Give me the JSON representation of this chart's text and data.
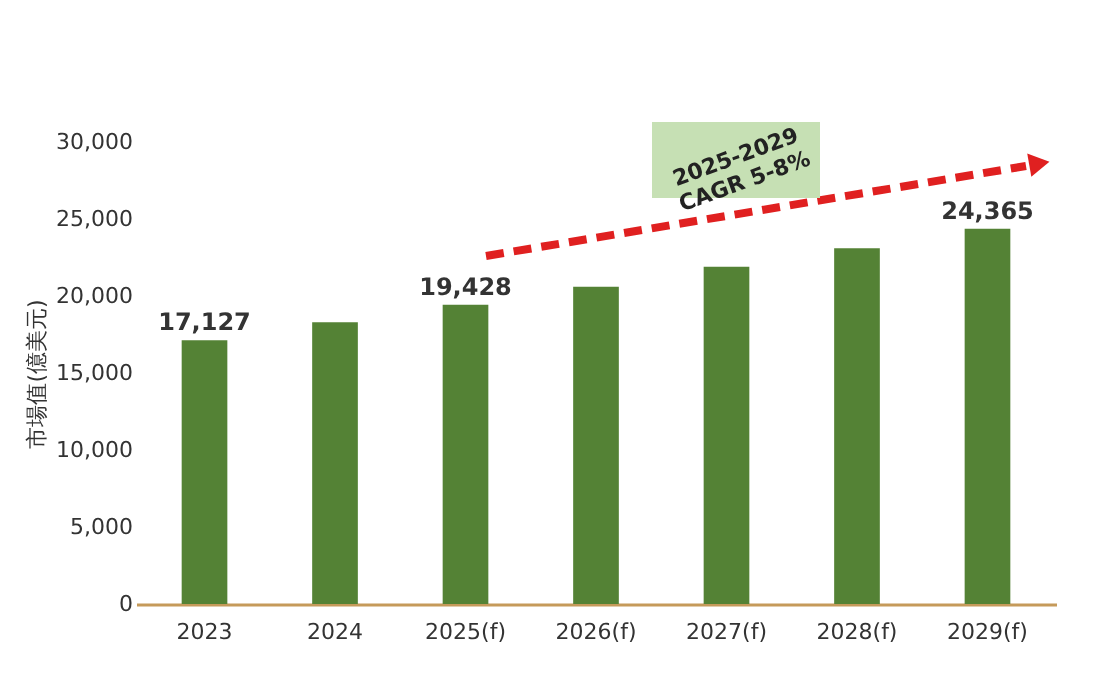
{
  "chart_data": {
    "type": "bar",
    "ylabel": "市場值(億美元)",
    "categories": [
      "2023",
      "2024",
      "2025(f)",
      "2026(f)",
      "2027(f)",
      "2028(f)",
      "2029(f)"
    ],
    "values": [
      17127,
      18300,
      19428,
      20600,
      21900,
      23100,
      24365
    ],
    "value_labels": [
      "17,127",
      null,
      "19,428",
      null,
      null,
      null,
      "24,365"
    ],
    "color": "#548235",
    "ylim": [
      0,
      30000
    ],
    "yticks": [
      0,
      {
        "value": 5000,
        "label": "5,000"
      },
      {
        "value": 10000,
        "label": "10,000"
      },
      {
        "value": 15000,
        "label": "15,000"
      },
      {
        "value": 20000,
        "label": "20,000"
      },
      {
        "value": 25000,
        "label": "25,000"
      },
      {
        "value": 30000,
        "label": "30,000"
      }
    ],
    "grid": false,
    "annotations": [
      "2025-2029\nCAGR 5-8%"
    ]
  }
}
